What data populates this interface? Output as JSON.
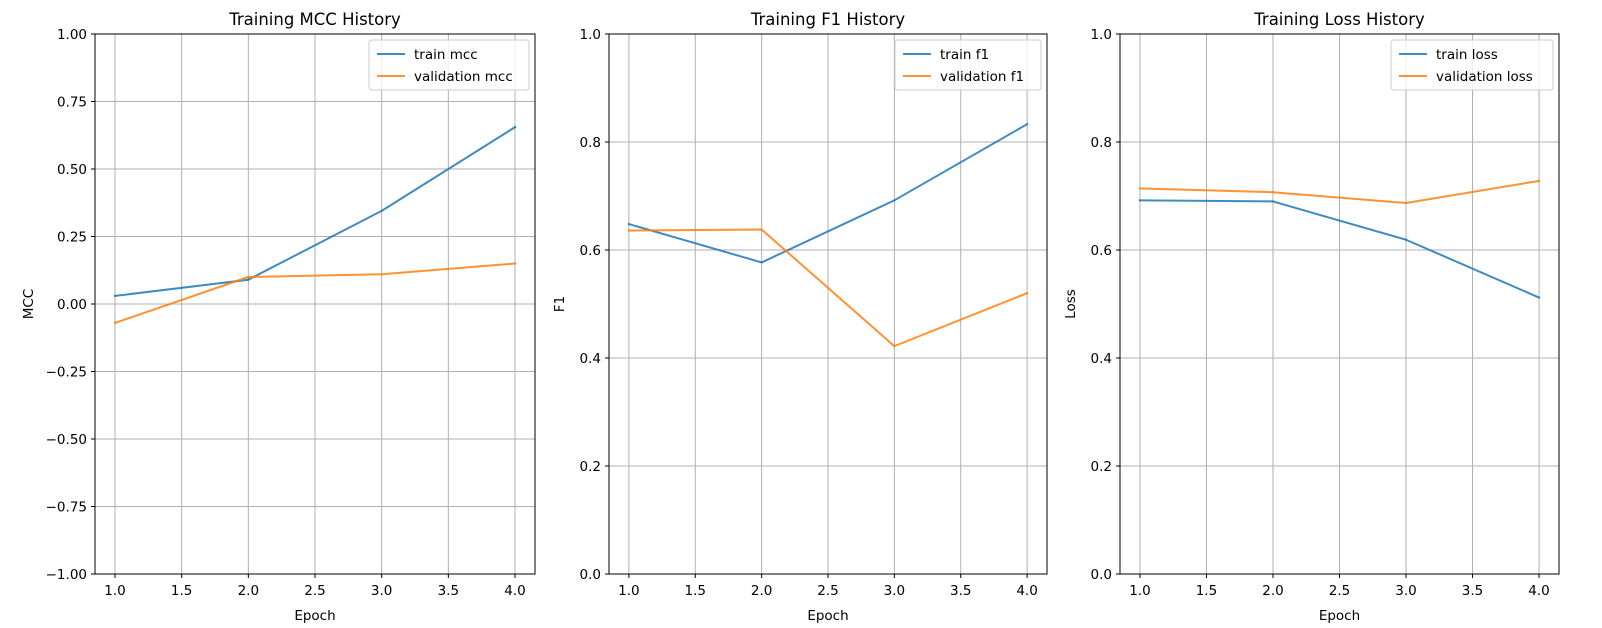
{
  "chart_data": [
    {
      "type": "line",
      "title": "Training MCC History",
      "xlabel": "Epoch",
      "ylabel": "MCC",
      "xlim": [
        0.85,
        4.15
      ],
      "ylim": [
        -1.0,
        1.0
      ],
      "x_ticks": [
        1.0,
        1.5,
        2.0,
        2.5,
        3.0,
        3.5,
        4.0
      ],
      "x_tick_labels": [
        "1.0",
        "1.5",
        "2.0",
        "2.5",
        "3.0",
        "3.5",
        "4.0"
      ],
      "y_ticks": [
        -1.0,
        -0.75,
        -0.5,
        -0.25,
        0.0,
        0.25,
        0.5,
        0.75,
        1.0
      ],
      "y_tick_labels": [
        "−1.00",
        "−0.75",
        "−0.50",
        "−0.25",
        "0.00",
        "0.25",
        "0.50",
        "0.75",
        "1.00"
      ],
      "grid": true,
      "legend_position": "top-right",
      "x": [
        1,
        2,
        3,
        4
      ],
      "series": [
        {
          "name": "train mcc",
          "color": "#1f77b4",
          "values": [
            0.03,
            0.09,
            0.345,
            0.655
          ]
        },
        {
          "name": "validation mcc",
          "color": "#ff7f0e",
          "values": [
            -0.07,
            0.1,
            0.11,
            0.15
          ]
        }
      ]
    },
    {
      "type": "line",
      "title": "Training F1 History",
      "xlabel": "Epoch",
      "ylabel": "F1",
      "xlim": [
        0.85,
        4.15
      ],
      "ylim": [
        0.0,
        1.0
      ],
      "x_ticks": [
        1.0,
        1.5,
        2.0,
        2.5,
        3.0,
        3.5,
        4.0
      ],
      "x_tick_labels": [
        "1.0",
        "1.5",
        "2.0",
        "2.5",
        "3.0",
        "3.5",
        "4.0"
      ],
      "y_ticks": [
        0.0,
        0.2,
        0.4,
        0.6,
        0.8,
        1.0
      ],
      "y_tick_labels": [
        "0.0",
        "0.2",
        "0.4",
        "0.6",
        "0.8",
        "1.0"
      ],
      "grid": true,
      "legend_position": "top-right",
      "x": [
        1,
        2,
        3,
        4
      ],
      "series": [
        {
          "name": "train f1",
          "color": "#1f77b4",
          "values": [
            0.648,
            0.577,
            0.692,
            0.833
          ]
        },
        {
          "name": "validation f1",
          "color": "#ff7f0e",
          "values": [
            0.636,
            0.638,
            0.422,
            0.52
          ]
        }
      ]
    },
    {
      "type": "line",
      "title": "Training Loss History",
      "xlabel": "Epoch",
      "ylabel": "Loss",
      "xlim": [
        0.85,
        4.15
      ],
      "ylim": [
        0.0,
        1.0
      ],
      "x_ticks": [
        1.0,
        1.5,
        2.0,
        2.5,
        3.0,
        3.5,
        4.0
      ],
      "x_tick_labels": [
        "1.0",
        "1.5",
        "2.0",
        "2.5",
        "3.0",
        "3.5",
        "4.0"
      ],
      "y_ticks": [
        0.0,
        0.2,
        0.4,
        0.6,
        0.8,
        1.0
      ],
      "y_tick_labels": [
        "0.0",
        "0.2",
        "0.4",
        "0.6",
        "0.8",
        "1.0"
      ],
      "grid": true,
      "legend_position": "top-right",
      "x": [
        1,
        2,
        3,
        4
      ],
      "series": [
        {
          "name": "train loss",
          "color": "#1f77b4",
          "values": [
            0.692,
            0.69,
            0.619,
            0.512
          ]
        },
        {
          "name": "validation loss",
          "color": "#ff7f0e",
          "values": [
            0.714,
            0.707,
            0.687,
            0.728
          ]
        }
      ]
    }
  ]
}
